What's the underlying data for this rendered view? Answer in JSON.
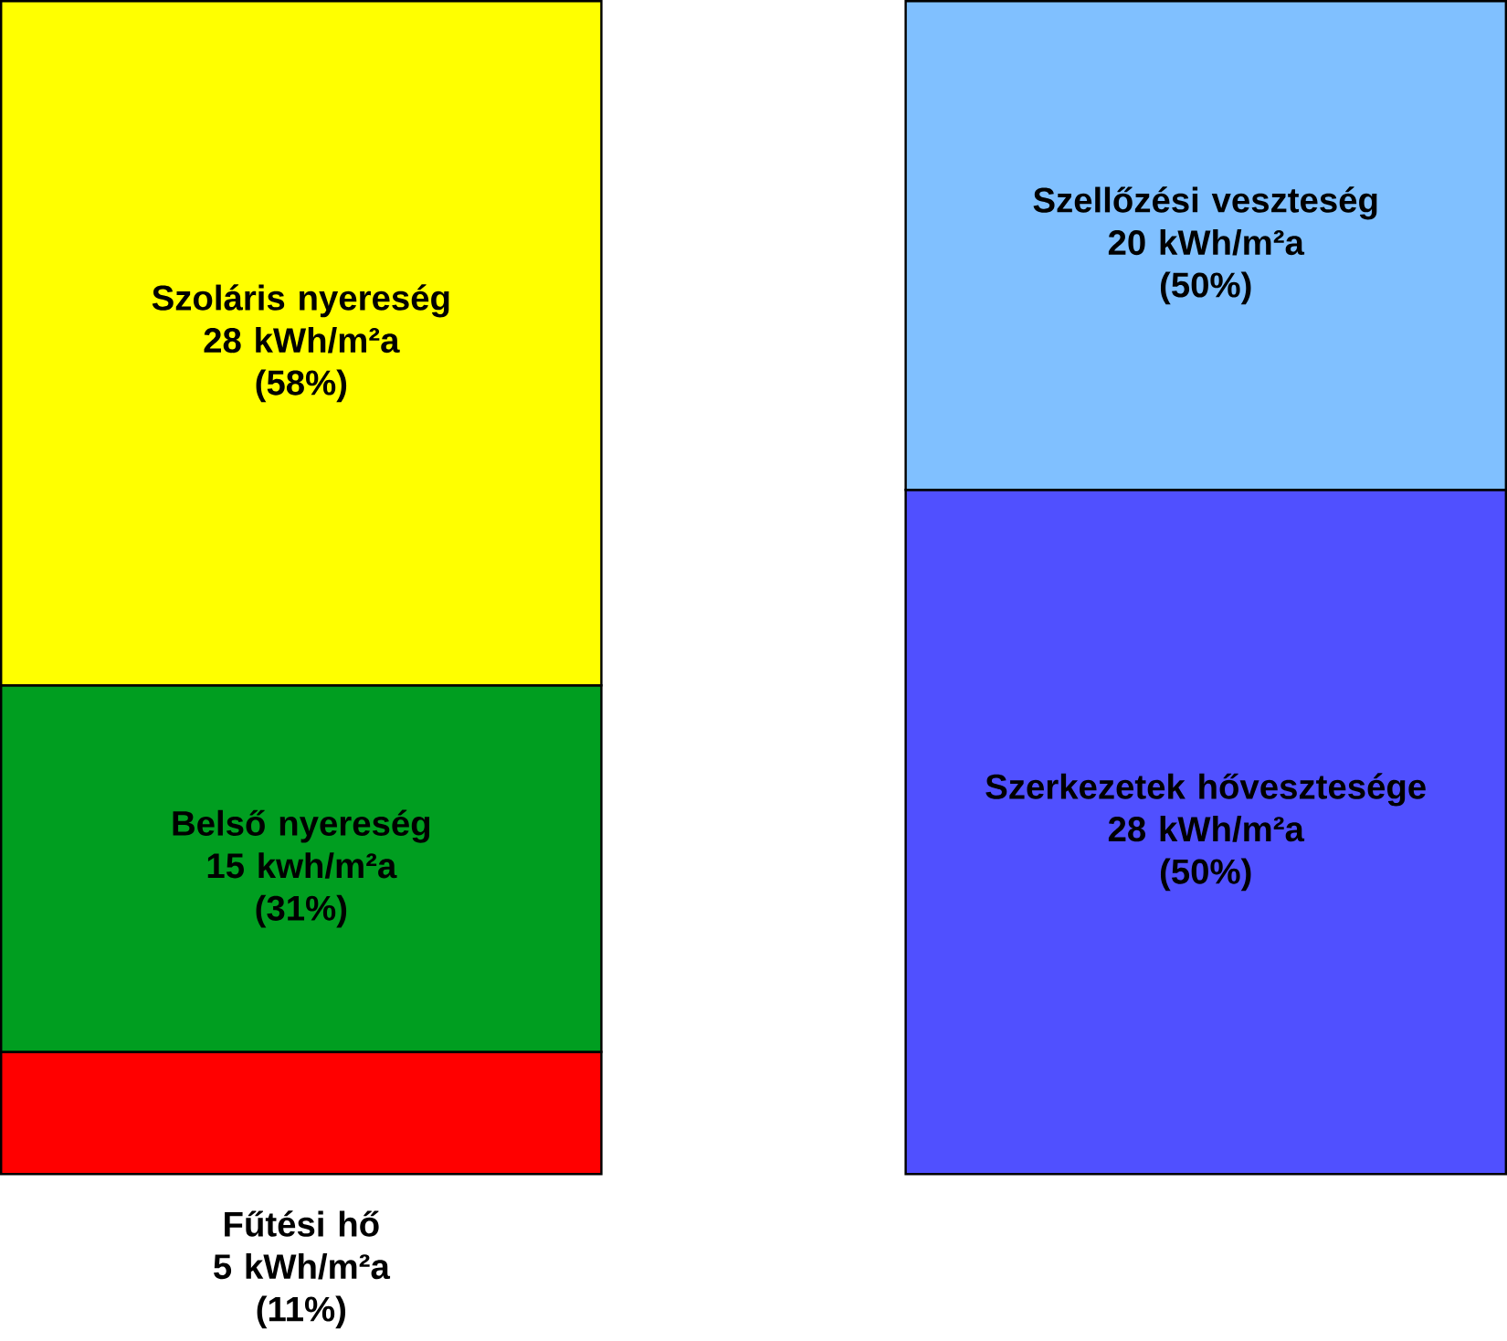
{
  "chart_data": {
    "type": "bar",
    "stacked": true,
    "categories": [
      null,
      null
    ],
    "series": [
      {
        "name": "Fűtési hő",
        "color": "#ff0000",
        "values": [
          5,
          null
        ],
        "value_labels": [
          "5 kWh/m²a",
          null
        ]
      },
      {
        "name": "Belső nyereség",
        "color": "#009e20",
        "values": [
          15,
          null
        ],
        "value_labels": [
          "15 kwh/m²a",
          null
        ]
      },
      {
        "name": "Szoláris nyereség",
        "color": "#ffff00",
        "values": [
          28,
          null
        ],
        "value_labels": [
          "28 kWh/m²a",
          null
        ]
      },
      {
        "name": "Szerkezetek hővesztesége",
        "color": "#5050ff",
        "values": [
          null,
          28
        ],
        "value_labels": [
          null,
          "28 kWh/m²a"
        ]
      },
      {
        "name": "Szellőzési veszteség",
        "color": "#80c0ff",
        "values": [
          null,
          20
        ],
        "value_labels": [
          null,
          "20 kWh/m²a"
        ]
      }
    ],
    "annotations": [
      "(11%)",
      "(31%)",
      "(58%)",
      "(50%)",
      "(50%)"
    ]
  }
}
